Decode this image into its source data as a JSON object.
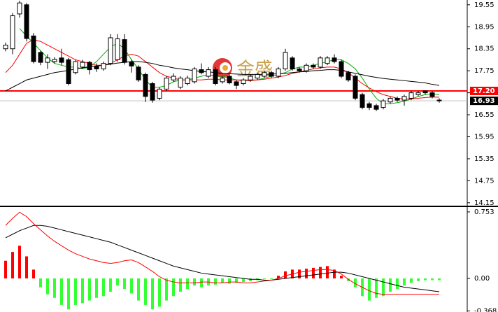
{
  "chart_data": [
    {
      "type": "candlestick",
      "watermark": "金盛",
      "up_color": "#ffffff",
      "down_color": "#000000",
      "open": [
        18.35,
        18.35,
        19.3,
        19.55,
        18.7,
        18.25,
        17.98,
        18.0,
        18.1,
        18.05,
        17.7,
        17.85,
        17.98,
        17.88,
        17.8,
        17.95,
        18.05,
        18.6,
        17.98,
        17.85,
        17.65,
        17.4,
        17.0,
        17.25,
        17.5,
        17.3,
        17.4,
        17.45,
        17.78,
        17.6,
        17.78,
        17.45,
        17.6,
        17.45,
        17.4,
        17.5,
        17.55,
        17.6,
        17.7,
        17.6,
        17.8,
        18.1,
        17.8,
        17.75,
        17.9,
        17.85,
        17.95,
        18.1,
        18.0,
        17.7,
        17.6,
        17.1,
        16.85,
        16.8,
        16.75,
        16.9,
        17.0,
        16.95,
        17.0,
        17.1,
        17.2,
        17.15,
        16.95
      ],
      "high": [
        18.52,
        19.32,
        19.66,
        19.6,
        18.78,
        18.3,
        18.2,
        18.12,
        18.35,
        18.1,
        18.05,
        18.05,
        18.02,
        17.95,
        18.0,
        18.75,
        18.75,
        18.75,
        18.05,
        17.9,
        17.7,
        17.45,
        17.3,
        17.6,
        17.68,
        17.6,
        17.62,
        17.85,
        17.95,
        17.85,
        17.85,
        17.6,
        17.65,
        17.5,
        17.55,
        17.65,
        17.7,
        17.75,
        17.75,
        17.85,
        18.35,
        18.15,
        17.85,
        17.95,
        17.95,
        18.15,
        18.15,
        18.2,
        18.05,
        17.75,
        17.65,
        17.15,
        16.9,
        16.85,
        16.98,
        17.05,
        17.05,
        17.1,
        17.2,
        17.2,
        17.22,
        17.2,
        17.0
      ],
      "low": [
        18.28,
        18.2,
        19.2,
        18.55,
        17.95,
        17.9,
        17.8,
        17.95,
        17.9,
        17.35,
        17.65,
        17.8,
        17.65,
        17.72,
        17.75,
        17.9,
        18.0,
        17.92,
        17.7,
        17.45,
        16.9,
        16.88,
        16.95,
        17.2,
        17.45,
        17.25,
        17.35,
        17.4,
        17.65,
        17.55,
        17.35,
        17.4,
        17.38,
        17.25,
        17.35,
        17.45,
        17.5,
        17.55,
        17.55,
        17.55,
        17.75,
        17.75,
        17.7,
        17.7,
        17.8,
        17.8,
        17.9,
        17.95,
        17.55,
        17.45,
        16.95,
        16.7,
        16.68,
        16.65,
        16.7,
        16.85,
        16.9,
        16.8,
        16.95,
        17.05,
        17.1,
        17.0,
        16.88
      ],
      "close": [
        18.45,
        19.25,
        19.6,
        18.63,
        18.0,
        17.98,
        18.1,
        18.06,
        17.98,
        17.4,
        18.0,
        17.98,
        17.78,
        17.8,
        17.95,
        18.65,
        18.62,
        17.98,
        17.88,
        17.5,
        17.05,
        16.95,
        17.25,
        17.55,
        17.6,
        17.55,
        17.55,
        17.8,
        17.7,
        17.78,
        17.4,
        17.55,
        17.42,
        17.35,
        17.5,
        17.6,
        17.65,
        17.7,
        17.6,
        17.8,
        18.25,
        17.8,
        17.75,
        17.9,
        17.85,
        18.1,
        18.1,
        18.0,
        17.6,
        17.5,
        17.0,
        16.75,
        16.75,
        16.7,
        16.93,
        17.0,
        16.95,
        17.05,
        17.15,
        17.15,
        17.15,
        17.05,
        16.93
      ],
      "series": [
        {
          "color": "#00b000",
          "values": [
            null,
            null,
            18.9,
            18.7,
            18.5,
            18.3,
            18.1,
            17.95,
            17.9,
            17.85,
            17.85,
            17.8,
            17.85,
            18.0,
            18.2,
            18.4,
            18.5,
            18.35,
            18.05,
            17.8,
            17.5,
            17.3,
            17.3,
            17.35,
            17.45,
            17.5,
            17.5,
            17.55,
            17.6,
            17.65,
            17.6,
            17.6,
            17.55,
            17.5,
            17.5,
            17.5,
            17.5,
            17.55,
            17.6,
            17.65,
            17.7,
            17.8,
            17.85,
            17.85,
            17.9,
            17.95,
            18.0,
            18.05,
            18.05,
            17.95,
            17.8,
            17.55,
            17.25,
            17.0,
            16.85,
            16.85,
            16.88,
            16.92,
            16.98,
            17.05,
            17.1,
            17.12,
            17.1
          ]
        },
        {
          "color": "#ff0000",
          "values": [
            17.7,
            17.9,
            18.2,
            18.5,
            18.6,
            18.55,
            18.45,
            18.35,
            18.25,
            18.15,
            18.05,
            18.0,
            17.95,
            17.9,
            17.9,
            17.95,
            18.05,
            18.15,
            18.2,
            18.15,
            18.0,
            17.85,
            17.7,
            17.6,
            17.55,
            17.5,
            17.5,
            17.5,
            17.5,
            17.52,
            17.52,
            17.5,
            17.5,
            17.5,
            17.48,
            17.48,
            17.5,
            17.52,
            17.55,
            17.58,
            17.62,
            17.68,
            17.72,
            17.76,
            17.8,
            17.83,
            17.85,
            17.85,
            17.8,
            17.7,
            17.55,
            17.4,
            17.28,
            17.18,
            17.1,
            17.05,
            17.0,
            16.98,
            16.98,
            17.0,
            17.02,
            17.03,
            17.03
          ]
        },
        {
          "color": "#000000",
          "values": [
            17.2,
            17.3,
            17.4,
            17.5,
            17.55,
            17.6,
            17.65,
            17.7,
            17.73,
            17.76,
            17.8,
            17.83,
            17.86,
            17.88,
            17.9,
            17.93,
            17.96,
            17.98,
            18.0,
            18.0,
            17.98,
            17.95,
            17.9,
            17.87,
            17.83,
            17.8,
            17.78,
            17.75,
            17.73,
            17.72,
            17.7,
            17.68,
            17.67,
            17.66,
            17.65,
            17.65,
            17.65,
            17.65,
            17.66,
            17.67,
            17.68,
            17.7,
            17.72,
            17.73,
            17.75,
            17.76,
            17.78,
            17.78,
            17.76,
            17.72,
            17.68,
            17.64,
            17.6,
            17.57,
            17.54,
            17.52,
            17.5,
            17.48,
            17.46,
            17.44,
            17.42,
            17.38,
            17.35
          ]
        }
      ],
      "hlines": [
        {
          "value": 17.2,
          "label": "17.20",
          "color": "#ff0000",
          "box_color": "#ff0000"
        },
        {
          "value": 16.93,
          "color": "#c0c0c0",
          "box_color": "#000000"
        }
      ],
      "ylim": [
        14.09,
        19.68
      ],
      "yticks": [
        19.55,
        18.95,
        18.35,
        17.75,
        17.15,
        16.55,
        15.95,
        15.35,
        14.75,
        14.15
      ]
    },
    {
      "type": "bar",
      "up_color": "#ff0000",
      "down_color": "#33ff33",
      "values": [
        0.2,
        0.3,
        0.37,
        0.25,
        0.1,
        -0.1,
        -0.18,
        -0.22,
        -0.3,
        -0.35,
        -0.3,
        -0.28,
        -0.25,
        -0.22,
        -0.2,
        -0.15,
        -0.08,
        -0.12,
        -0.17,
        -0.25,
        -0.3,
        -0.35,
        -0.32,
        -0.25,
        -0.2,
        -0.15,
        -0.12,
        -0.08,
        -0.1,
        -0.08,
        -0.07,
        -0.05,
        -0.06,
        -0.05,
        -0.04,
        -0.03,
        -0.02,
        -0.01,
        -0.01,
        0.03,
        0.08,
        0.1,
        0.1,
        0.11,
        0.12,
        0.13,
        0.14,
        0.1,
        0.03,
        -0.03,
        -0.1,
        -0.2,
        -0.25,
        -0.22,
        -0.2,
        -0.15,
        -0.12,
        -0.08,
        -0.05,
        -0.03,
        -0.02,
        -0.02,
        -0.02
      ],
      "series": [
        {
          "color": "#000000",
          "values": [
            0.46,
            0.5,
            0.54,
            0.57,
            0.6,
            0.6,
            0.59,
            0.57,
            0.55,
            0.53,
            0.51,
            0.49,
            0.47,
            0.45,
            0.43,
            0.41,
            0.38,
            0.35,
            0.32,
            0.29,
            0.26,
            0.23,
            0.2,
            0.17,
            0.14,
            0.12,
            0.1,
            0.08,
            0.06,
            0.05,
            0.04,
            0.03,
            0.02,
            0.01,
            0.0,
            -0.01,
            -0.01,
            -0.02,
            -0.02,
            -0.01,
            0.0,
            0.01,
            0.02,
            0.03,
            0.04,
            0.05,
            0.06,
            0.07,
            0.07,
            0.06,
            0.04,
            0.02,
            0.0,
            -0.02,
            -0.04,
            -0.06,
            -0.08,
            -0.1,
            -0.11,
            -0.12,
            -0.13,
            -0.14,
            -0.15
          ]
        },
        {
          "color": "#ff0000",
          "values": [
            0.6,
            0.68,
            0.75,
            0.7,
            0.62,
            0.55,
            0.48,
            0.42,
            0.37,
            0.32,
            0.28,
            0.25,
            0.22,
            0.2,
            0.18,
            0.17,
            0.18,
            0.2,
            0.21,
            0.18,
            0.13,
            0.08,
            0.02,
            -0.02,
            -0.04,
            -0.05,
            -0.05,
            -0.05,
            -0.04,
            -0.04,
            -0.05,
            -0.05,
            -0.04,
            -0.04,
            -0.05,
            -0.05,
            -0.04,
            -0.03,
            -0.02,
            0.0,
            0.03,
            0.05,
            0.07,
            0.08,
            0.09,
            0.1,
            0.1,
            0.09,
            0.05,
            -0.01,
            -0.06,
            -0.1,
            -0.14,
            -0.17,
            -0.18,
            -0.18,
            -0.18,
            -0.18,
            -0.18,
            -0.18,
            -0.18,
            -0.18,
            -0.18
          ]
        }
      ],
      "ylim": [
        -0.38,
        0.8
      ],
      "yticks": [
        0.753,
        {
          "value": 0,
          "label": "0.00"
        },
        -0.368
      ]
    }
  ]
}
